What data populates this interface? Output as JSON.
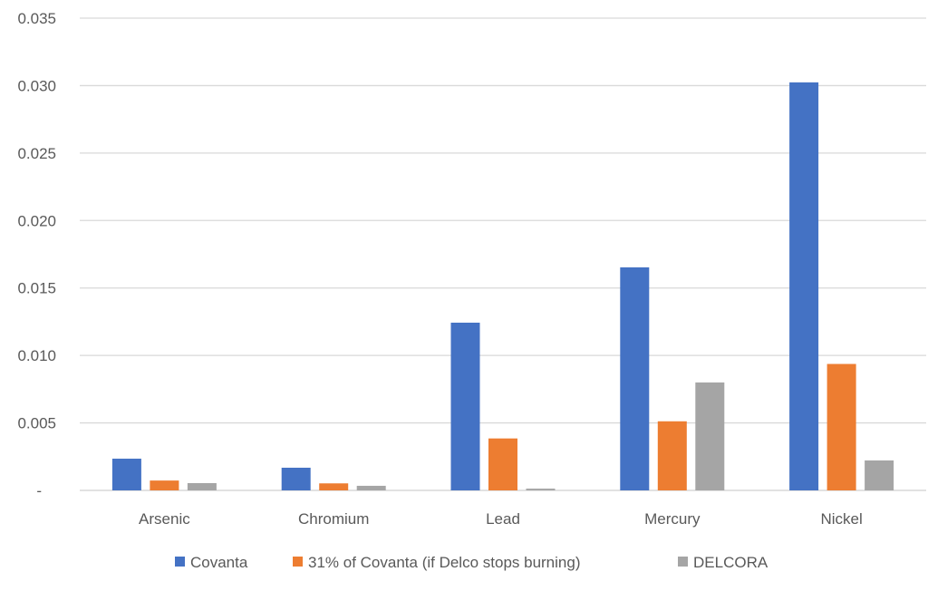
{
  "chart_data": {
    "type": "bar",
    "title": "",
    "xlabel": "",
    "ylabel": "",
    "categories": [
      "Arsenic",
      "Chromium",
      "Lead",
      "Mercury",
      "Nickel"
    ],
    "series": [
      {
        "name": "Covanta",
        "color": "#4472C4",
        "values": [
          0.00235,
          0.00168,
          0.01243,
          0.01653,
          0.03024
        ]
      },
      {
        "name": "31% of Covanta (if Delco stops burning)",
        "color": "#ED7D31",
        "values": [
          0.00073,
          0.00052,
          0.00385,
          0.00512,
          0.00937
        ]
      },
      {
        "name": "DELCORA",
        "color": "#A5A5A5",
        "values": [
          0.00054,
          0.00034,
          0.00013,
          0.008,
          0.00222
        ]
      }
    ],
    "ylim": [
      0,
      0.035
    ],
    "yticks": [
      0,
      0.005,
      0.01,
      0.015,
      0.02,
      0.025,
      0.03,
      0.035
    ],
    "ytick_labels": [
      "-",
      "0.005",
      "0.010",
      "0.015",
      "0.020",
      "0.025",
      "0.030",
      "0.035"
    ],
    "grid": true,
    "legend": "bottom"
  }
}
